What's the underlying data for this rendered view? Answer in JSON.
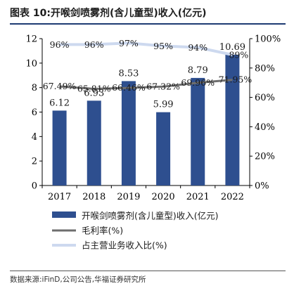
{
  "title": "图表 10:开喉剑喷雾剂(含儿童型)收入(亿元)",
  "source": "数据来源:iFinD,公司公告,华福证券研究所",
  "colors": {
    "bar": "#2e4f8f",
    "margin_line": "#6e6e6e",
    "share_line": "#cdd9ef",
    "rule": "#1f3b73"
  },
  "chart_data": {
    "type": "bar",
    "categories": [
      "2017",
      "2018",
      "2019",
      "2020",
      "2021",
      "2022"
    ],
    "ylim": [
      0,
      12
    ],
    "y_ticks": [
      "0",
      "2",
      "4",
      "6",
      "8",
      "10",
      "12"
    ],
    "y2lim": [
      0,
      100
    ],
    "y2_ticks": [
      "0%",
      "20%",
      "40%",
      "60%",
      "80%",
      "100%"
    ],
    "series": [
      {
        "name": "开喉剑喷雾剂(含儿童型)收入(亿元)",
        "kind": "bar",
        "axis": "left",
        "values": [
          6.12,
          6.93,
          8.53,
          5.99,
          8.79,
          10.69
        ],
        "labels": [
          "6.12",
          "6.93",
          "8.53",
          "5.99",
          "8.79",
          "10.69"
        ]
      },
      {
        "name": "毛利率(%)",
        "kind": "line",
        "axis": "right",
        "values": [
          67.49,
          65.81,
          66.46,
          67.32,
          69.96,
          71.95
        ],
        "labels": [
          "67.49%",
          "65.81%",
          "66.46%",
          "67.32%",
          "69.96%",
          "71.95%"
        ]
      },
      {
        "name": "占主营业务收入比(%)",
        "kind": "line",
        "axis": "right",
        "values": [
          96,
          96,
          97,
          95,
          94,
          89
        ],
        "labels": [
          "96%",
          "96%",
          "97%",
          "95%",
          "94%",
          "89%"
        ]
      }
    ],
    "legend_position": "bottom"
  }
}
